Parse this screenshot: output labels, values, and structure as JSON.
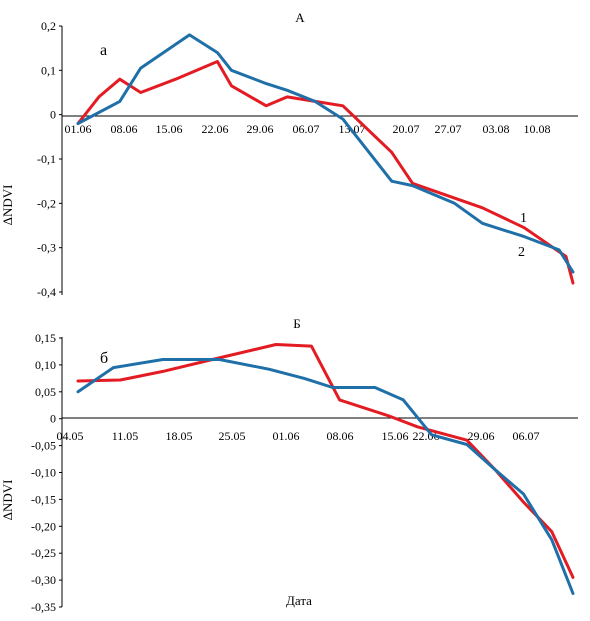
{
  "chart_data": [
    {
      "type": "line",
      "title": "А",
      "panel_label": "а",
      "ylabel": "ΔNDVI",
      "xlabel": "",
      "x_ticks": [
        "01.06",
        "08.06",
        "15.06",
        "22.06",
        "29.06",
        "06.07",
        "13.07",
        "20.07",
        "27.07",
        "03.08",
        "10.08"
      ],
      "x_range": [
        0,
        71
      ],
      "y_ticks": [
        "0,2",
        "0,1",
        "0",
        "-0,1",
        "-0,2",
        "-0,3",
        "-0,4"
      ],
      "ylim": [
        -0.4,
        0.2
      ],
      "grid": false,
      "series": [
        {
          "name": "1",
          "color": "#e31b23",
          "x": [
            0,
            3,
            6,
            9,
            14,
            20,
            22,
            27,
            30,
            34,
            38,
            45,
            48,
            58,
            64,
            70,
            71
          ],
          "y": [
            -0.02,
            0.04,
            0.08,
            0.05,
            0.08,
            0.12,
            0.065,
            0.02,
            0.04,
            0.03,
            0.02,
            -0.085,
            -0.155,
            -0.21,
            -0.255,
            -0.32,
            -0.38
          ]
        },
        {
          "name": "2",
          "color": "#1f6fa8",
          "x": [
            0,
            6,
            9,
            16,
            20,
            22,
            27,
            30,
            34,
            38,
            45,
            48,
            54,
            58,
            64,
            69,
            71
          ],
          "y": [
            -0.02,
            0.03,
            0.105,
            0.18,
            0.14,
            0.1,
            0.07,
            0.055,
            0.03,
            -0.01,
            -0.15,
            -0.16,
            -0.2,
            -0.245,
            -0.275,
            -0.305,
            -0.355
          ]
        }
      ]
    },
    {
      "type": "line",
      "title": "Б",
      "panel_label": "б",
      "ylabel": "ΔNDVI",
      "xlabel": "Дата",
      "x_ticks": [
        "04.05",
        "11.05",
        "18.05",
        "25.05",
        "01.06",
        "08.06",
        "15.06",
        "22.06",
        "29.06",
        "06.07"
      ],
      "x_range": [
        0,
        70
      ],
      "y_ticks": [
        "0,15",
        "0,10",
        "0,05",
        "0",
        "-0,05",
        "-0,10",
        "-0,15",
        "-0,20",
        "-0,25",
        "-0,30",
        "-0,35"
      ],
      "ylim": [
        -0.35,
        0.15
      ],
      "grid": false,
      "series": [
        {
          "name": "1",
          "color": "#e31b23",
          "x": [
            0,
            6,
            12,
            19,
            28,
            33,
            37,
            44,
            48,
            55,
            59,
            63,
            67,
            70
          ],
          "y": [
            0.07,
            0.072,
            0.088,
            0.11,
            0.138,
            0.135,
            0.035,
            0.005,
            -0.015,
            -0.04,
            -0.095,
            -0.155,
            -0.21,
            -0.295
          ]
        },
        {
          "name": "2",
          "color": "#1f6fa8",
          "x": [
            0,
            5,
            12,
            20,
            27,
            32,
            36,
            42,
            46,
            50,
            55,
            59,
            63,
            67,
            70
          ],
          "y": [
            0.05,
            0.095,
            0.11,
            0.11,
            0.092,
            0.075,
            0.058,
            0.058,
            0.035,
            -0.03,
            -0.048,
            -0.095,
            -0.14,
            -0.225,
            -0.325
          ]
        }
      ]
    }
  ]
}
